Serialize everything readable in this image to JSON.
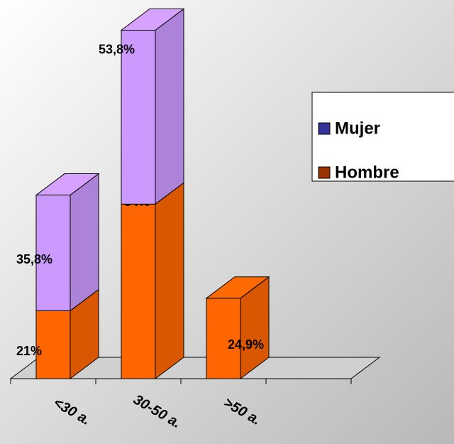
{
  "chart_data": {
    "type": "bar3d_stacked",
    "categories": [
      "<30 a.",
      "30-50 a.",
      ">50 a."
    ],
    "series": [
      {
        "name": "Hombre",
        "color": "#993300",
        "bar_color": "#ff6600",
        "values": [
          21,
          54,
          24.9
        ],
        "value_labels": [
          "21%",
          "54%",
          "24,9%"
        ]
      },
      {
        "name": "Mujer",
        "color": "#333399",
        "bar_color": "#cc99ff",
        "values": [
          35.8,
          53.8,
          null
        ],
        "value_labels": [
          "35,8%",
          "53,8%",
          null
        ]
      }
    ]
  }
}
